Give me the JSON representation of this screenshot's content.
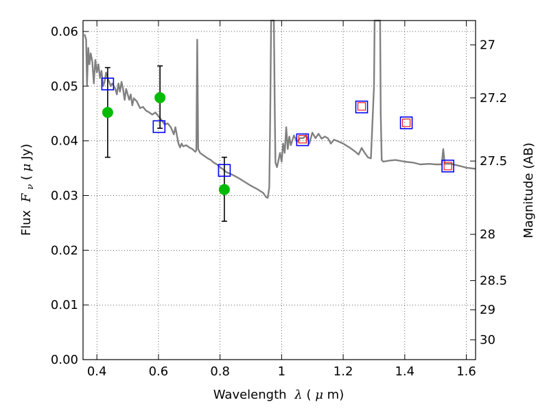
{
  "chart_data": {
    "type": "line",
    "title": "",
    "xlabel_text": "Wavelength",
    "xlabel_symbol": "λ",
    "xlabel_unit_open": " (",
    "xlabel_unit_mu": "μ",
    "xlabel_unit_rest": "m)",
    "ylabel_text": "Flux",
    "ylabel_symbol": "F",
    "ylabel_sub": "ν",
    "ylabel_unit_open": " (",
    "ylabel_unit_mu": "μ",
    "ylabel_unit_rest": "Jy)",
    "y2label": "Magnitude (AB)",
    "xlim": [
      0.355,
      1.63
    ],
    "ylim": [
      0.0,
      0.062
    ],
    "grid": true,
    "x_ticks": [
      {
        "v": 0.4,
        "label": "0.4"
      },
      {
        "v": 0.6,
        "label": "0.6"
      },
      {
        "v": 0.8,
        "label": "0.8"
      },
      {
        "v": 1.0,
        "label": "1"
      },
      {
        "v": 1.2,
        "label": "1.2"
      },
      {
        "v": 1.4,
        "label": "1.4"
      },
      {
        "v": 1.6,
        "label": "1.6"
      }
    ],
    "y_ticks": [
      {
        "v": 0.0,
        "label": "0.00"
      },
      {
        "v": 0.01,
        "label": "0.01"
      },
      {
        "v": 0.02,
        "label": "0.02"
      },
      {
        "v": 0.03,
        "label": "0.03"
      },
      {
        "v": 0.04,
        "label": "0.04"
      },
      {
        "v": 0.05,
        "label": "0.05"
      },
      {
        "v": 0.06,
        "label": "0.06"
      }
    ],
    "y2_ticks": [
      {
        "mag": 27,
        "label": "27"
      },
      {
        "mag": 27.2,
        "label": "27.2"
      },
      {
        "mag": 27.5,
        "label": "27.5"
      },
      {
        "mag": 28,
        "label": "28"
      },
      {
        "mag": 28.5,
        "label": "28.5"
      },
      {
        "mag": 29,
        "label": "29"
      },
      {
        "mag": 30,
        "label": "30"
      }
    ],
    "series": [
      {
        "kind": "sed_model",
        "color": "#808080",
        "points": [
          [
            0.36,
            0.0595
          ],
          [
            0.365,
            0.0585
          ],
          [
            0.368,
            0.0502
          ],
          [
            0.372,
            0.057
          ],
          [
            0.376,
            0.054
          ],
          [
            0.38,
            0.056
          ],
          [
            0.385,
            0.0545
          ],
          [
            0.39,
            0.0505
          ],
          [
            0.395,
            0.0548
          ],
          [
            0.4,
            0.0525
          ],
          [
            0.405,
            0.054
          ],
          [
            0.41,
            0.0515
          ],
          [
            0.415,
            0.0528
          ],
          [
            0.42,
            0.05
          ],
          [
            0.425,
            0.0508
          ],
          [
            0.43,
            0.0525
          ],
          [
            0.435,
            0.0515
          ],
          [
            0.44,
            0.0508
          ],
          [
            0.445,
            0.05
          ],
          [
            0.45,
            0.0505
          ],
          [
            0.46,
            0.0495
          ],
          [
            0.465,
            0.0485
          ],
          [
            0.47,
            0.0505
          ],
          [
            0.475,
            0.049
          ],
          [
            0.48,
            0.0508
          ],
          [
            0.485,
            0.0495
          ],
          [
            0.49,
            0.0475
          ],
          [
            0.495,
            0.0495
          ],
          [
            0.5,
            0.0485
          ],
          [
            0.505,
            0.0475
          ],
          [
            0.51,
            0.0485
          ],
          [
            0.515,
            0.0465
          ],
          [
            0.52,
            0.0478
          ],
          [
            0.53,
            0.0472
          ],
          [
            0.54,
            0.046
          ],
          [
            0.55,
            0.0462
          ],
          [
            0.56,
            0.0455
          ],
          [
            0.57,
            0.0452
          ],
          [
            0.58,
            0.0448
          ],
          [
            0.59,
            0.0452
          ],
          [
            0.6,
            0.0445
          ],
          [
            0.61,
            0.0438
          ],
          [
            0.62,
            0.043
          ],
          [
            0.63,
            0.0432
          ],
          [
            0.64,
            0.0425
          ],
          [
            0.65,
            0.0412
          ],
          [
            0.655,
            0.0425
          ],
          [
            0.66,
            0.041
          ],
          [
            0.665,
            0.0395
          ],
          [
            0.67,
            0.0388
          ],
          [
            0.675,
            0.0395
          ],
          [
            0.68,
            0.039
          ],
          [
            0.69,
            0.0392
          ],
          [
            0.7,
            0.0388
          ],
          [
            0.71,
            0.0385
          ],
          [
            0.72,
            0.038
          ],
          [
            0.723,
            0.0383
          ],
          [
            0.726,
            0.0585
          ],
          [
            0.729,
            0.0385
          ],
          [
            0.735,
            0.0378
          ],
          [
            0.75,
            0.0372
          ],
          [
            0.76,
            0.0368
          ],
          [
            0.77,
            0.0365
          ],
          [
            0.78,
            0.036
          ],
          [
            0.79,
            0.0357
          ],
          [
            0.8,
            0.0352
          ],
          [
            0.81,
            0.0348
          ],
          [
            0.82,
            0.0343
          ],
          [
            0.84,
            0.0338
          ],
          [
            0.86,
            0.0332
          ],
          [
            0.88,
            0.0325
          ],
          [
            0.9,
            0.0318
          ],
          [
            0.92,
            0.0312
          ],
          [
            0.94,
            0.0305
          ],
          [
            0.95,
            0.0297
          ],
          [
            0.955,
            0.0296
          ],
          [
            0.96,
            0.0315
          ],
          [
            0.963,
            0.045
          ],
          [
            0.966,
            0.062
          ],
          [
            0.975,
            0.062
          ],
          [
            0.978,
            0.0445
          ],
          [
            0.98,
            0.036
          ],
          [
            0.985,
            0.0352
          ],
          [
            0.99,
            0.0365
          ],
          [
            0.995,
            0.0378
          ],
          [
            1.0,
            0.0362
          ],
          [
            1.005,
            0.0395
          ],
          [
            1.01,
            0.0378
          ],
          [
            1.015,
            0.0425
          ],
          [
            1.02,
            0.0385
          ],
          [
            1.025,
            0.0408
          ],
          [
            1.03,
            0.0392
          ],
          [
            1.04,
            0.041
          ],
          [
            1.05,
            0.0398
          ],
          [
            1.06,
            0.0405
          ],
          [
            1.07,
            0.0405
          ],
          [
            1.08,
            0.041
          ],
          [
            1.09,
            0.0395
          ],
          [
            1.1,
            0.0415
          ],
          [
            1.11,
            0.0405
          ],
          [
            1.12,
            0.0413
          ],
          [
            1.13,
            0.0404
          ],
          [
            1.14,
            0.0408
          ],
          [
            1.15,
            0.0405
          ],
          [
            1.16,
            0.0395
          ],
          [
            1.17,
            0.0402
          ],
          [
            1.18,
            0.04
          ],
          [
            1.2,
            0.0395
          ],
          [
            1.22,
            0.0388
          ],
          [
            1.24,
            0.038
          ],
          [
            1.25,
            0.0375
          ],
          [
            1.26,
            0.0387
          ],
          [
            1.27,
            0.0378
          ],
          [
            1.28,
            0.037
          ],
          [
            1.29,
            0.0368
          ],
          [
            1.3,
            0.05
          ],
          [
            1.302,
            0.062
          ],
          [
            1.32,
            0.062
          ],
          [
            1.322,
            0.045
          ],
          [
            1.325,
            0.0365
          ],
          [
            1.33,
            0.0362
          ],
          [
            1.35,
            0.0364
          ],
          [
            1.37,
            0.0365
          ],
          [
            1.4,
            0.0362
          ],
          [
            1.43,
            0.036
          ],
          [
            1.45,
            0.0357
          ],
          [
            1.48,
            0.0358
          ],
          [
            1.5,
            0.0357
          ],
          [
            1.52,
            0.0357
          ],
          [
            1.525,
            0.0385
          ],
          [
            1.53,
            0.0358
          ],
          [
            1.55,
            0.0358
          ],
          [
            1.58,
            0.0354
          ],
          [
            1.6,
            0.0351
          ],
          [
            1.63,
            0.0349
          ]
        ]
      },
      {
        "kind": "model_photometry_blue_squares",
        "color": "#0000ff",
        "points": [
          [
            0.435,
            0.0504
          ],
          [
            0.602,
            0.0426
          ],
          [
            0.814,
            0.0346
          ],
          [
            1.068,
            0.0402
          ],
          [
            1.26,
            0.0462
          ],
          [
            1.405,
            0.0433
          ],
          [
            1.54,
            0.0354
          ]
        ]
      },
      {
        "kind": "upper_limits_red_squares",
        "color": "#ff0000",
        "points": [
          [
            1.068,
            0.0403
          ],
          [
            1.26,
            0.0463
          ],
          [
            1.405,
            0.0433
          ],
          [
            1.54,
            0.0354
          ]
        ]
      },
      {
        "kind": "observed_green_points",
        "color": "#00bb00",
        "points": [
          [
            0.435,
            0.0452,
            0.037,
            0.0534
          ],
          [
            0.605,
            0.0479,
            0.0423,
            0.0537
          ],
          [
            0.814,
            0.0311,
            0.0253,
            0.037
          ]
        ]
      }
    ]
  }
}
